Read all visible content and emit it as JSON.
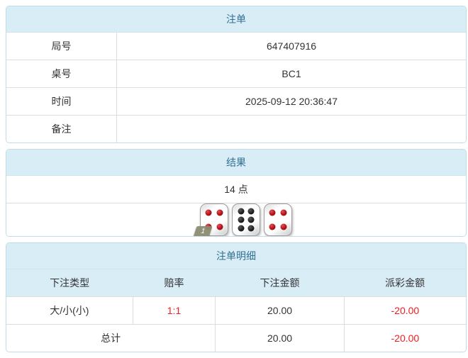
{
  "colors": {
    "header_bg": "#d9edf7",
    "header_text": "#31708f",
    "panel_border": "#bfdce8",
    "cell_border": "#dddddd",
    "body_text": "#333333",
    "negative_red": "#f01e1e",
    "pip_red": "#b0111b",
    "pip_black": "#1c1c1c",
    "die_tag_bg": "#8d8d71"
  },
  "bet_slip": {
    "title": "注单",
    "rows": [
      {
        "label": "局号",
        "value": "647407916"
      },
      {
        "label": "桌号",
        "value": "BC1"
      },
      {
        "label": "时间",
        "value": "2025-09-12 20:36:47"
      },
      {
        "label": "备注",
        "value": ""
      }
    ]
  },
  "result": {
    "title": "结果",
    "points": "14 点",
    "dice": [
      {
        "value": 4,
        "color": "red",
        "tag": "1"
      },
      {
        "value": 6,
        "color": "black",
        "tag": ""
      },
      {
        "value": 4,
        "color": "red",
        "tag": ""
      }
    ]
  },
  "detail": {
    "title": "注单明细",
    "columns": [
      "下注类型",
      "赔率",
      "下注金额",
      "派彩金额"
    ],
    "rows": [
      {
        "type": "大/小(小)",
        "odds": "1:1",
        "bet": "20.00",
        "payout": "-20.00"
      }
    ],
    "total": {
      "label": "总计",
      "bet": "20.00",
      "payout": "-20.00"
    }
  }
}
